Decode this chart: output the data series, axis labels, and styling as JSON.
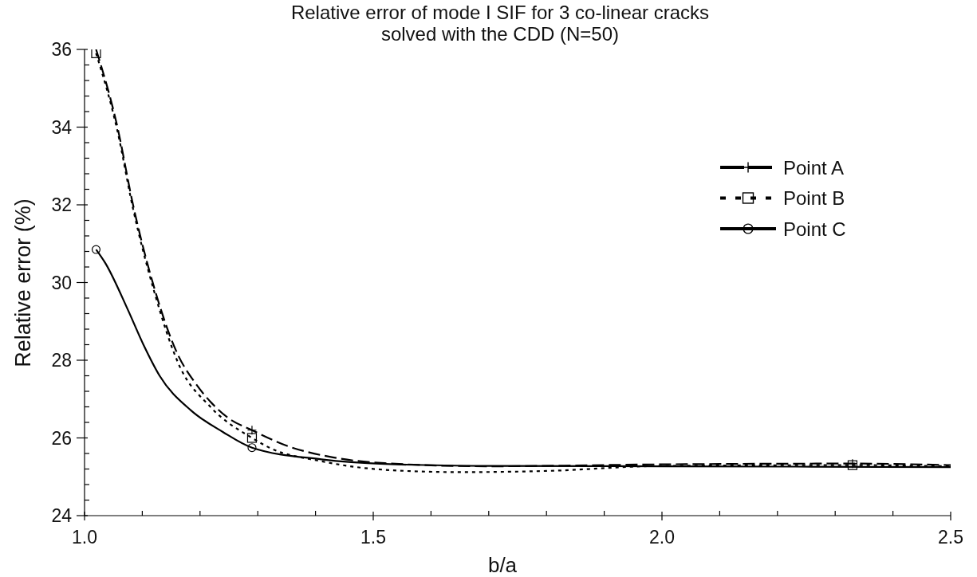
{
  "chart_data": {
    "type": "line",
    "title": "Relative error of mode I SIF for 3 co-linear cracks solved with the CDD (N=50)",
    "xlabel": "b/a",
    "ylabel": "Relative error (%)",
    "xlim": [
      1.0,
      2.5
    ],
    "xticks": [
      {
        "value": 1.0,
        "label": "1.0"
      },
      {
        "value": 1.1,
        "label": null
      },
      {
        "value": 1.2,
        "label": null
      },
      {
        "value": 1.3,
        "label": null
      },
      {
        "value": 1.4,
        "label": null
      },
      1.5,
      {
        "value": 1.6,
        "label": null
      },
      {
        "value": 1.7,
        "label": null
      },
      {
        "value": 1.8,
        "label": null
      },
      {
        "value": 1.9,
        "label": null
      },
      {
        "value": 2.0,
        "label": "2.0"
      },
      {
        "value": 2.1,
        "label": null
      },
      {
        "value": 2.2,
        "label": null
      },
      {
        "value": 2.3,
        "label": null
      },
      {
        "value": 2.4,
        "label": null
      },
      2.5
    ],
    "ylim": [
      24,
      36
    ],
    "yticks": [
      24,
      {
        "value": 24.4,
        "label": null
      },
      {
        "value": 24.8,
        "label": null
      },
      {
        "value": 25.2,
        "label": null
      },
      {
        "value": 25.6,
        "label": null
      },
      26,
      {
        "value": 26.4,
        "label": null
      },
      {
        "value": 26.8,
        "label": null
      },
      {
        "value": 27.2,
        "label": null
      },
      {
        "value": 27.6,
        "label": null
      },
      28,
      {
        "value": 28.4,
        "label": null
      },
      {
        "value": 28.8,
        "label": null
      },
      {
        "value": 29.2,
        "label": null
      },
      {
        "value": 29.6,
        "label": null
      },
      30,
      {
        "value": 30.4,
        "label": null
      },
      {
        "value": 30.8,
        "label": null
      },
      {
        "value": 31.2,
        "label": null
      },
      {
        "value": 31.6,
        "label": null
      },
      32,
      {
        "value": 32.4,
        "label": null
      },
      {
        "value": 32.8,
        "label": null
      },
      {
        "value": 33.2,
        "label": null
      },
      {
        "value": 33.6,
        "label": null
      },
      34,
      {
        "value": 34.4,
        "label": null
      },
      {
        "value": 34.8,
        "label": null
      },
      {
        "value": 35.2,
        "label": null
      },
      {
        "value": 35.6,
        "label": null
      },
      36
    ],
    "legend": "right",
    "series": [
      {
        "name": "Point A",
        "color": "#000000",
        "line_style": "dashed",
        "x": [
          1.02,
          1.057,
          1.084,
          1.12,
          1.163,
          1.19,
          1.22,
          1.25,
          1.29,
          1.35,
          1.43,
          1.52,
          1.7,
          2.0,
          2.33,
          2.5
        ],
        "values": [
          36.0,
          34.0,
          32.0,
          29.9,
          28.1,
          27.45,
          26.9,
          26.5,
          26.2,
          25.8,
          25.5,
          25.35,
          25.27,
          25.32,
          25.34,
          25.3
        ]
      },
      {
        "name": "Point B",
        "color": "#000000",
        "line_style": "dotted",
        "x": [
          1.02,
          1.057,
          1.084,
          1.12,
          1.163,
          1.218,
          1.29,
          1.32,
          1.41,
          1.52,
          1.65,
          1.8,
          2.0,
          2.33,
          2.5
        ],
        "values": [
          35.9,
          33.9,
          31.9,
          29.8,
          27.9,
          26.8,
          26.0,
          25.75,
          25.4,
          25.18,
          25.12,
          25.15,
          25.28,
          25.3,
          25.27
        ]
      },
      {
        "name": "Point C",
        "color": "#000000",
        "line_style": "solid",
        "x": [
          1.02,
          1.036,
          1.075,
          1.102,
          1.13,
          1.185,
          1.24,
          1.29,
          1.41,
          1.52,
          1.7,
          2.0,
          2.5
        ],
        "values": [
          30.85,
          30.5,
          29.3,
          28.4,
          27.6,
          26.7,
          26.15,
          25.75,
          25.45,
          25.33,
          25.28,
          25.27,
          25.25
        ]
      },
      {
        "type": "scatter",
        "color": "#000000",
        "marker": "cross",
        "x": [
          1.29,
          2.33
        ],
        "values": [
          26.2,
          25.34
        ]
      },
      {
        "type": "scatter",
        "color": "#000000",
        "marker": "square",
        "x": [
          1.02,
          1.29,
          2.33
        ],
        "values": [
          35.9,
          26.0,
          25.3
        ]
      },
      {
        "type": "scatter",
        "color": "#000000",
        "marker": "circle",
        "x": [
          1.02,
          1.29
        ],
        "values": [
          30.85,
          25.75
        ]
      }
    ]
  }
}
